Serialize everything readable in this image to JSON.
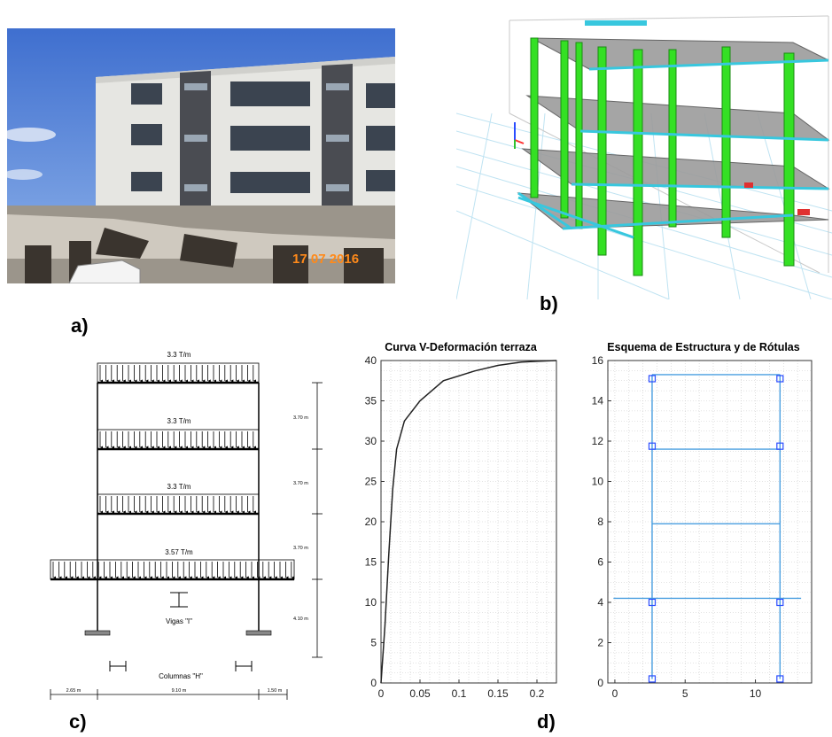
{
  "labels": {
    "a": "a)",
    "b": "b)",
    "c": "c)",
    "d": "d)"
  },
  "photo": {
    "date_stamp": "17 07 2016"
  },
  "frame_diagram": {
    "loads": [
      "3.3 T/m",
      "3.3 T/m",
      "3.3 T/m",
      "3.57 T/m"
    ],
    "story_heights": [
      "3.70 m",
      "3.70 m",
      "3.70 m",
      "4.10 m"
    ],
    "spans": [
      "2.65 m",
      "9.10 m",
      "1.50 m"
    ],
    "beam_label": "Vigas \"I\"",
    "column_label": "Columnas \"H\""
  },
  "chart_data": [
    {
      "type": "line",
      "title": "Curva V-Deformación terraza",
      "xlim": [
        0,
        0.225
      ],
      "ylim": [
        0,
        40
      ],
      "x_ticks": [
        "0",
        "0.05",
        "0.1",
        "0.15",
        "0.2"
      ],
      "y_ticks": [
        "0",
        "5",
        "10",
        "15",
        "20",
        "25",
        "30",
        "35",
        "40"
      ],
      "grid": true,
      "series": [
        {
          "x": [
            0,
            0.005,
            0.01,
            0.015,
            0.02,
            0.03,
            0.05,
            0.08,
            0.12,
            0.15,
            0.18,
            0.2,
            0.225
          ],
          "y": [
            0,
            7,
            16,
            24,
            29,
            32.5,
            35,
            37.5,
            38.7,
            39.4,
            39.8,
            39.9,
            40
          ]
        }
      ]
    },
    {
      "type": "line",
      "title": "Esquema de Estructura y de Rótulas",
      "xlim": [
        -0.5,
        14
      ],
      "ylim": [
        0,
        16
      ],
      "x_ticks": [
        "0",
        "5",
        "10"
      ],
      "y_ticks": [
        "0",
        "2",
        "4",
        "6",
        "8",
        "10",
        "12",
        "14",
        "16"
      ],
      "grid": true,
      "columns_x": [
        2.65,
        11.75
      ],
      "floor_levels": [
        4.2,
        7.9,
        11.6,
        15.3
      ],
      "slab_overhang_x": [
        -0.1,
        13.25
      ],
      "hinges": [
        {
          "x": 2.65,
          "y": 0.2
        },
        {
          "x": 11.75,
          "y": 0.2
        },
        {
          "x": 2.65,
          "y": 4.0
        },
        {
          "x": 11.75,
          "y": 4.0
        },
        {
          "x": 2.65,
          "y": 11.75
        },
        {
          "x": 11.75,
          "y": 11.75
        },
        {
          "x": 2.65,
          "y": 15.1
        },
        {
          "x": 11.75,
          "y": 15.1
        }
      ]
    }
  ]
}
